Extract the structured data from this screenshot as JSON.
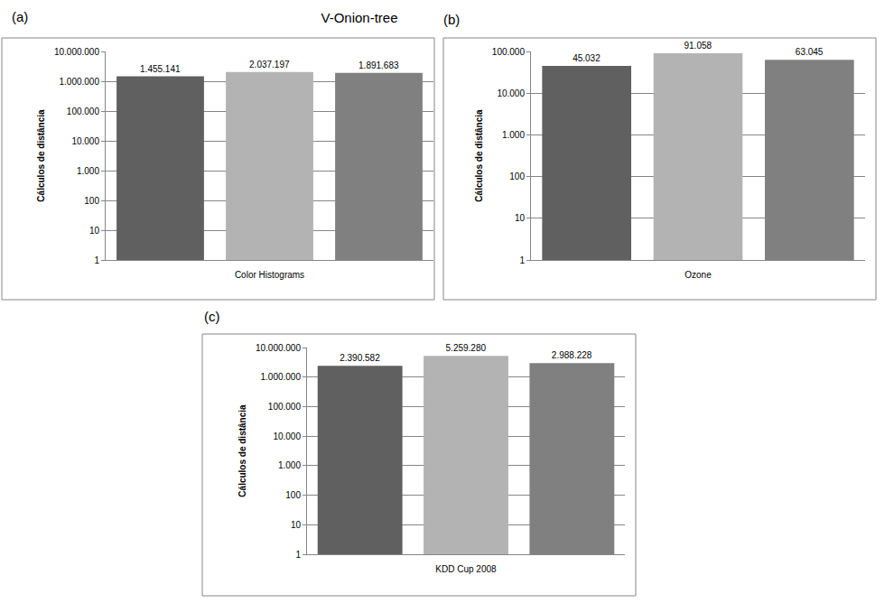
{
  "title": "V-Onion-tree",
  "chart_data": [
    {
      "type": "bar",
      "annotation": "(a)",
      "xlabel": "Color Histograms",
      "ylabel": "Cálculos de distância",
      "categories": [
        null,
        null,
        null
      ],
      "values": [
        1455141,
        2037197,
        1891683
      ],
      "value_labels": [
        "1.455.141",
        "2.037.197",
        "1.891.683"
      ],
      "colors": [
        "#606060",
        "#b3b3b3",
        "#808080"
      ],
      "log": "y",
      "grid": true,
      "data_labels": true,
      "tick_labels": "y",
      "ylim": [
        1,
        10000000
      ],
      "yticks": [
        1,
        10,
        100,
        {
          "value": 1000,
          "label": "1.000"
        },
        {
          "value": 10000,
          "label": "10.000"
        },
        {
          "value": 100000,
          "label": "100.000"
        },
        {
          "value": 1000000,
          "label": "1.000.000"
        },
        {
          "value": 10000000,
          "label": "10.000.000"
        }
      ]
    },
    {
      "type": "bar",
      "annotation": "(b)",
      "xlabel": "Ozone",
      "ylabel": "Cálculos de distância",
      "categories": [
        null,
        null,
        null
      ],
      "values": [
        45032,
        91058,
        63045
      ],
      "value_labels": [
        "45.032",
        "91.058",
        "63.045"
      ],
      "colors": [
        "#606060",
        "#b3b3b3",
        "#808080"
      ],
      "log": "y",
      "grid": true,
      "data_labels": true,
      "tick_labels": "y",
      "ylim": [
        1,
        100000
      ],
      "yticks": [
        1,
        10,
        100,
        {
          "value": 1000,
          "label": "1.000"
        },
        {
          "value": 10000,
          "label": "10.000"
        },
        {
          "value": 100000,
          "label": "100.000"
        }
      ]
    },
    {
      "type": "bar",
      "annotation": "(c)",
      "xlabel": "KDD Cup 2008",
      "ylabel": "Cálculos de distância",
      "categories": [
        null,
        null,
        null
      ],
      "values": [
        2390582,
        5259280,
        2988228
      ],
      "value_labels": [
        "2.390.582",
        "5.259.280",
        "2.988.228"
      ],
      "colors": [
        "#606060",
        "#b3b3b3",
        "#808080"
      ],
      "log": "y",
      "grid": true,
      "data_labels": true,
      "tick_labels": "y",
      "ylim": [
        1,
        10000000
      ],
      "yticks": [
        1,
        10,
        100,
        {
          "value": 1000,
          "label": "1.000"
        },
        {
          "value": 10000,
          "label": "10.000"
        },
        {
          "value": 100000,
          "label": "100.000"
        },
        {
          "value": 1000000,
          "label": "1.000.000"
        },
        {
          "value": 10000000,
          "label": "10.000.000"
        }
      ]
    }
  ]
}
